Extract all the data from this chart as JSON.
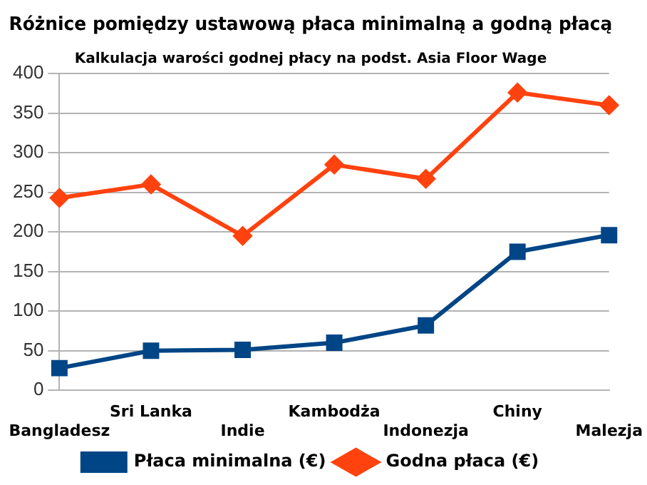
{
  "chart_data": {
    "type": "line",
    "title": "Różnice pomiędzy ustawową płaca minimalną a godną płacą",
    "subtitle": "Kalkulacja warości godnej płacy na podst. Asia Floor Wage",
    "categories": [
      "Bangladesz",
      "Sri Lanka",
      "Indie",
      "Kambodża",
      "Indonezja",
      "Chiny",
      "Malezja"
    ],
    "series": [
      {
        "name": "Płaca minimalna (€)",
        "color": "#004586",
        "marker": "square",
        "values": [
          28,
          50,
          51,
          60,
          82,
          175,
          196
        ]
      },
      {
        "name": "Godna płaca (€)",
        "color": "#ff420e",
        "marker": "diamond",
        "values": [
          243,
          260,
          195,
          285,
          267,
          376,
          360
        ]
      }
    ],
    "ylim": [
      0,
      400
    ],
    "yticks": [
      0,
      50,
      100,
      150,
      200,
      250,
      300,
      350,
      400
    ],
    "grid": "y",
    "legend": "bottom"
  }
}
